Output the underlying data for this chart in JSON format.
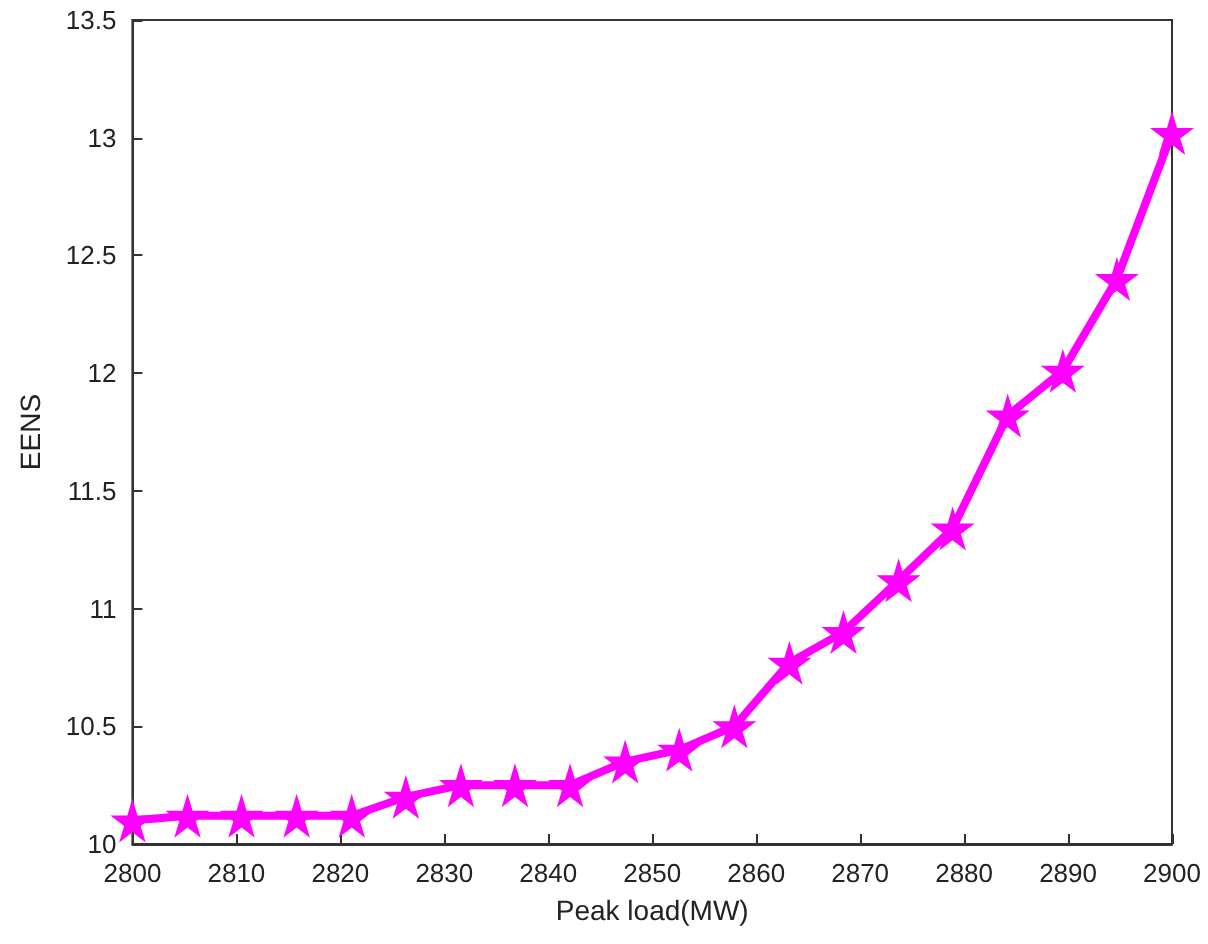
{
  "chart_data": {
    "type": "line",
    "xlabel": "Peak load(MW)",
    "ylabel": "EENS",
    "x": [
      2800,
      2805.3,
      2810.5,
      2815.8,
      2821.1,
      2826.3,
      2831.6,
      2836.8,
      2842.1,
      2847.4,
      2852.6,
      2857.9,
      2863.2,
      2868.4,
      2873.7,
      2878.9,
      2884.2,
      2889.5,
      2894.7,
      2900
    ],
    "series": [
      {
        "color": "#ff00ff",
        "values": [
          10.1,
          10.12,
          10.12,
          10.12,
          10.12,
          10.2,
          10.25,
          10.25,
          10.25,
          10.35,
          10.4,
          10.5,
          10.77,
          10.9,
          11.12,
          11.34,
          11.82,
          12.01,
          12.4,
          13.02
        ]
      }
    ],
    "xlim": [
      2800,
      2900
    ],
    "xticks": [
      2800,
      2810,
      2820,
      2830,
      2840,
      2850,
      2860,
      2870,
      2880,
      2890,
      2900
    ],
    "ylim": [
      10,
      13.5
    ],
    "yticks": [
      10,
      10.5,
      11,
      11.5,
      12,
      12.5,
      13,
      13.5
    ],
    "grid": false,
    "marker": "star",
    "line_style": "solid"
  }
}
